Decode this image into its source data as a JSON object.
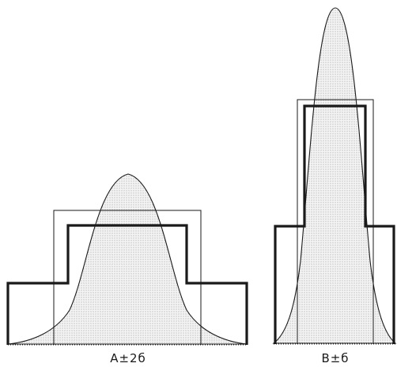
{
  "panels": [
    {
      "label": "A±2б"
    },
    {
      "label": "B±б"
    }
  ],
  "colors": {
    "line": "#1a1a1a",
    "stipple_dot": "#8a8a8a",
    "background": "#ffffff"
  }
}
